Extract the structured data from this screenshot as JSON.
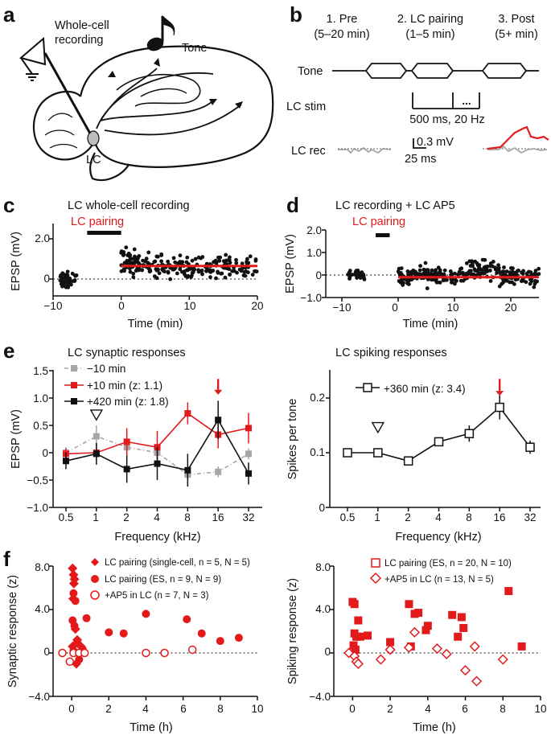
{
  "colors": {
    "red": "#e31a1c",
    "black": "#111111",
    "gray": "#a6a6a6",
    "brain_fill": "#ffffff"
  },
  "panel_labels": {
    "a": "a",
    "b": "b",
    "c": "c",
    "d": "d",
    "e": "e",
    "f": "f"
  },
  "panel_a": {
    "recording": "Whole-cell\nrecording",
    "tone": "Tone",
    "lc": "LC",
    "note_icon": "music-note-icon",
    "electrode_icon": "electrode-amplifier-icon"
  },
  "panel_b": {
    "phases": [
      {
        "name": "1. Pre",
        "duration": "(5–20 min)"
      },
      {
        "name": "2. LC pairing",
        "duration": "(1–5 min)"
      },
      {
        "name": "3. Post",
        "duration": "(5+ min)"
      }
    ],
    "tone_label": "Tone",
    "lc_stim_label": "LC stim",
    "lc_stim_detail": "500 ms, 20 Hz",
    "lc_stim_dots": "...",
    "lc_rec_label": "LC rec",
    "scale_mv": "0.3 mV",
    "scale_ms": "25 ms"
  },
  "chart_data": [
    {
      "id": "c",
      "type": "scatter",
      "title": "LC whole-cell recording",
      "annotation": "LC pairing",
      "pairing_bar": [
        -5,
        0
      ],
      "xlabel": "Time (min)",
      "ylabel": "EPSP (mV)",
      "xlim": [
        -10,
        20
      ],
      "ylim": [
        -0.8,
        2.4
      ],
      "xticks": [
        "−10",
        "0",
        "10",
        "20"
      ],
      "yticks": [
        "0",
        "2.0"
      ],
      "fit_line": {
        "x": [
          0,
          20
        ],
        "y": 0.65
      },
      "baseline_mean": 0,
      "post_mean": 0.65
    },
    {
      "id": "d",
      "type": "scatter",
      "title": "LC recording + LC AP5",
      "annotation": "LC pairing",
      "pairing_bar": [
        -4,
        -1.5
      ],
      "xlabel": "Time (min)",
      "ylabel": "EPSP (mV)",
      "xlim": [
        -10,
        25
      ],
      "ylim": [
        -1.0,
        2.0
      ],
      "xticks": [
        "−10",
        "0",
        "10",
        "20"
      ],
      "yticks": [
        "−1.0",
        "0",
        "1.0",
        "2.0"
      ],
      "fit_line": {
        "x": [
          0,
          25
        ],
        "y": -0.1
      },
      "baseline_mean": 0,
      "post_mean": -0.05
    },
    {
      "id": "e-left",
      "type": "line",
      "title": "LC synaptic responses",
      "xlabel": "Frequency (kHz)",
      "ylabel": "EPSP (mV)",
      "categories": [
        "0.5",
        "1",
        "2",
        "4",
        "8",
        "16",
        "32"
      ],
      "ylim": [
        -1.0,
        1.5
      ],
      "yticks": [
        "−1.0",
        "−0.5",
        "0",
        "0.5",
        "1.0",
        "1.5"
      ],
      "series": [
        {
          "name": "−10 min",
          "values": [
            0,
            0.3,
            0.1,
            0.0,
            -0.4,
            -0.35,
            -0.02
          ],
          "err": [
            0.1,
            0.2,
            0.15,
            0.12,
            0.1,
            0.1,
            0.1
          ]
        },
        {
          "name": "+10 min (z: 1.1)",
          "values": [
            -0.02,
            0.0,
            0.2,
            0.1,
            0.72,
            0.33,
            0.45
          ],
          "err": [
            0.1,
            0.15,
            0.25,
            0.3,
            0.2,
            0.25,
            0.28
          ]
        },
        {
          "name": "+420 min (z: 1.8)",
          "values": [
            -0.15,
            -0.02,
            -0.3,
            -0.2,
            -0.32,
            0.6,
            -0.38
          ],
          "err": [
            0.15,
            0.2,
            0.25,
            0.3,
            0.3,
            0.35,
            0.2
          ]
        }
      ],
      "markers": {
        "triangle_at": "1",
        "arrow_at": "16"
      }
    },
    {
      "id": "e-right",
      "type": "line",
      "title": "LC spiking responses",
      "xlabel": "Frequency (kHz)",
      "ylabel": "Spikes per tone",
      "categories": [
        "0.5",
        "1",
        "2",
        "4",
        "8",
        "16",
        "32"
      ],
      "ylim": [
        0,
        0.25
      ],
      "yticks": [
        "0",
        "0.1",
        "0.2"
      ],
      "series": [
        {
          "name": "+360 min (z: 3.4)",
          "values": [
            0.1,
            0.1,
            0.085,
            0.12,
            0.135,
            0.183,
            0.11
          ],
          "err": [
            0.004,
            0.008,
            0.004,
            0.008,
            0.015,
            0.022,
            0.012
          ]
        }
      ],
      "markers": {
        "triangle_at": "1",
        "arrow_at": "16"
      }
    },
    {
      "id": "f-left",
      "type": "scatter",
      "xlabel": "Time (h)",
      "ylabel": "Synaptic response (z)",
      "xlim": [
        -1,
        10
      ],
      "ylim": [
        -4,
        8
      ],
      "xticks": [
        "0",
        "2",
        "4",
        "6",
        "8",
        "10"
      ],
      "yticks": [
        "−4.0",
        "0",
        "4.0",
        "8.0"
      ],
      "series": [
        {
          "name": "LC pairing (single-cell, n = 5, N = 5)",
          "marker": "filled-diamond",
          "x": [
            0.05,
            0.1,
            0.15,
            0.12,
            0.08,
            0.2,
            0.3,
            0.05,
            0.5,
            0.25
          ],
          "y": [
            7.8,
            7.2,
            6.8,
            6.4,
            5.0,
            2.2,
            1.2,
            0.6,
            0.6,
            -1.0
          ]
        },
        {
          "name": "LC pairing (ES, n = 9, N = 9)",
          "marker": "filled-circle",
          "x": [
            0.1,
            0.2,
            0.05,
            0.15,
            0.8,
            2.0,
            2.8,
            4.0,
            6.2,
            7.0,
            8.0,
            9.0,
            0.3,
            0.1,
            0.6,
            0.4
          ],
          "y": [
            5.5,
            4.8,
            3.0,
            2.5,
            3.2,
            1.9,
            1.8,
            3.6,
            3.1,
            1.8,
            1.1,
            1.4,
            1.0,
            0.2,
            0.3,
            -0.6
          ]
        },
        {
          "name": "+AP5 in LC (n = 7, N = 3)",
          "marker": "open-circle",
          "x": [
            -0.5,
            -0.1,
            0.1,
            0.4,
            0.7,
            4.0,
            5.0,
            6.5
          ],
          "y": [
            0.0,
            -0.8,
            0.0,
            0.0,
            0.0,
            0.0,
            0.0,
            0.3
          ]
        }
      ]
    },
    {
      "id": "f-right",
      "type": "scatter",
      "xlabel": "Time (h)",
      "ylabel": "Spiking response (z)",
      "xlim": [
        -1,
        10
      ],
      "ylim": [
        -4,
        8
      ],
      "xticks": [
        "0",
        "2",
        "4",
        "6",
        "8",
        "10"
      ],
      "yticks": [
        "−4.0",
        "0",
        "4.0",
        "8.0"
      ],
      "series": [
        {
          "name": "LC pairing (ES, n = 20, N = 10)",
          "marker": "filled-square",
          "x": [
            0.0,
            0.1,
            0.3,
            0.1,
            0.2,
            0.4,
            0.8,
            0.05,
            0.15,
            2.0,
            3.0,
            3.3,
            3.5,
            3.1,
            3.9,
            5.3,
            5.8,
            5.9,
            5.6,
            8.3,
            9.0,
            4.0
          ],
          "y": [
            4.7,
            4.5,
            3.0,
            1.8,
            1.5,
            1.5,
            1.6,
            0.7,
            0.3,
            1.0,
            4.5,
            3.6,
            3.7,
            0.6,
            2.1,
            3.5,
            3.3,
            2.3,
            1.5,
            5.7,
            0.6,
            2.5
          ]
        },
        {
          "name": "+AP5 in LC (n = 13, N = 5)",
          "marker": "open-diamond",
          "x": [
            -0.2,
            0.1,
            0.2,
            0.3,
            1.5,
            2.0,
            3.0,
            3.3,
            4.5,
            5.0,
            6.0,
            6.5,
            6.6,
            8.0
          ],
          "y": [
            0.0,
            -0.3,
            -0.8,
            -1.0,
            -0.6,
            0.3,
            0.5,
            1.9,
            0.4,
            -0.1,
            -1.6,
            0.6,
            -2.6,
            -0.6
          ]
        }
      ]
    }
  ]
}
